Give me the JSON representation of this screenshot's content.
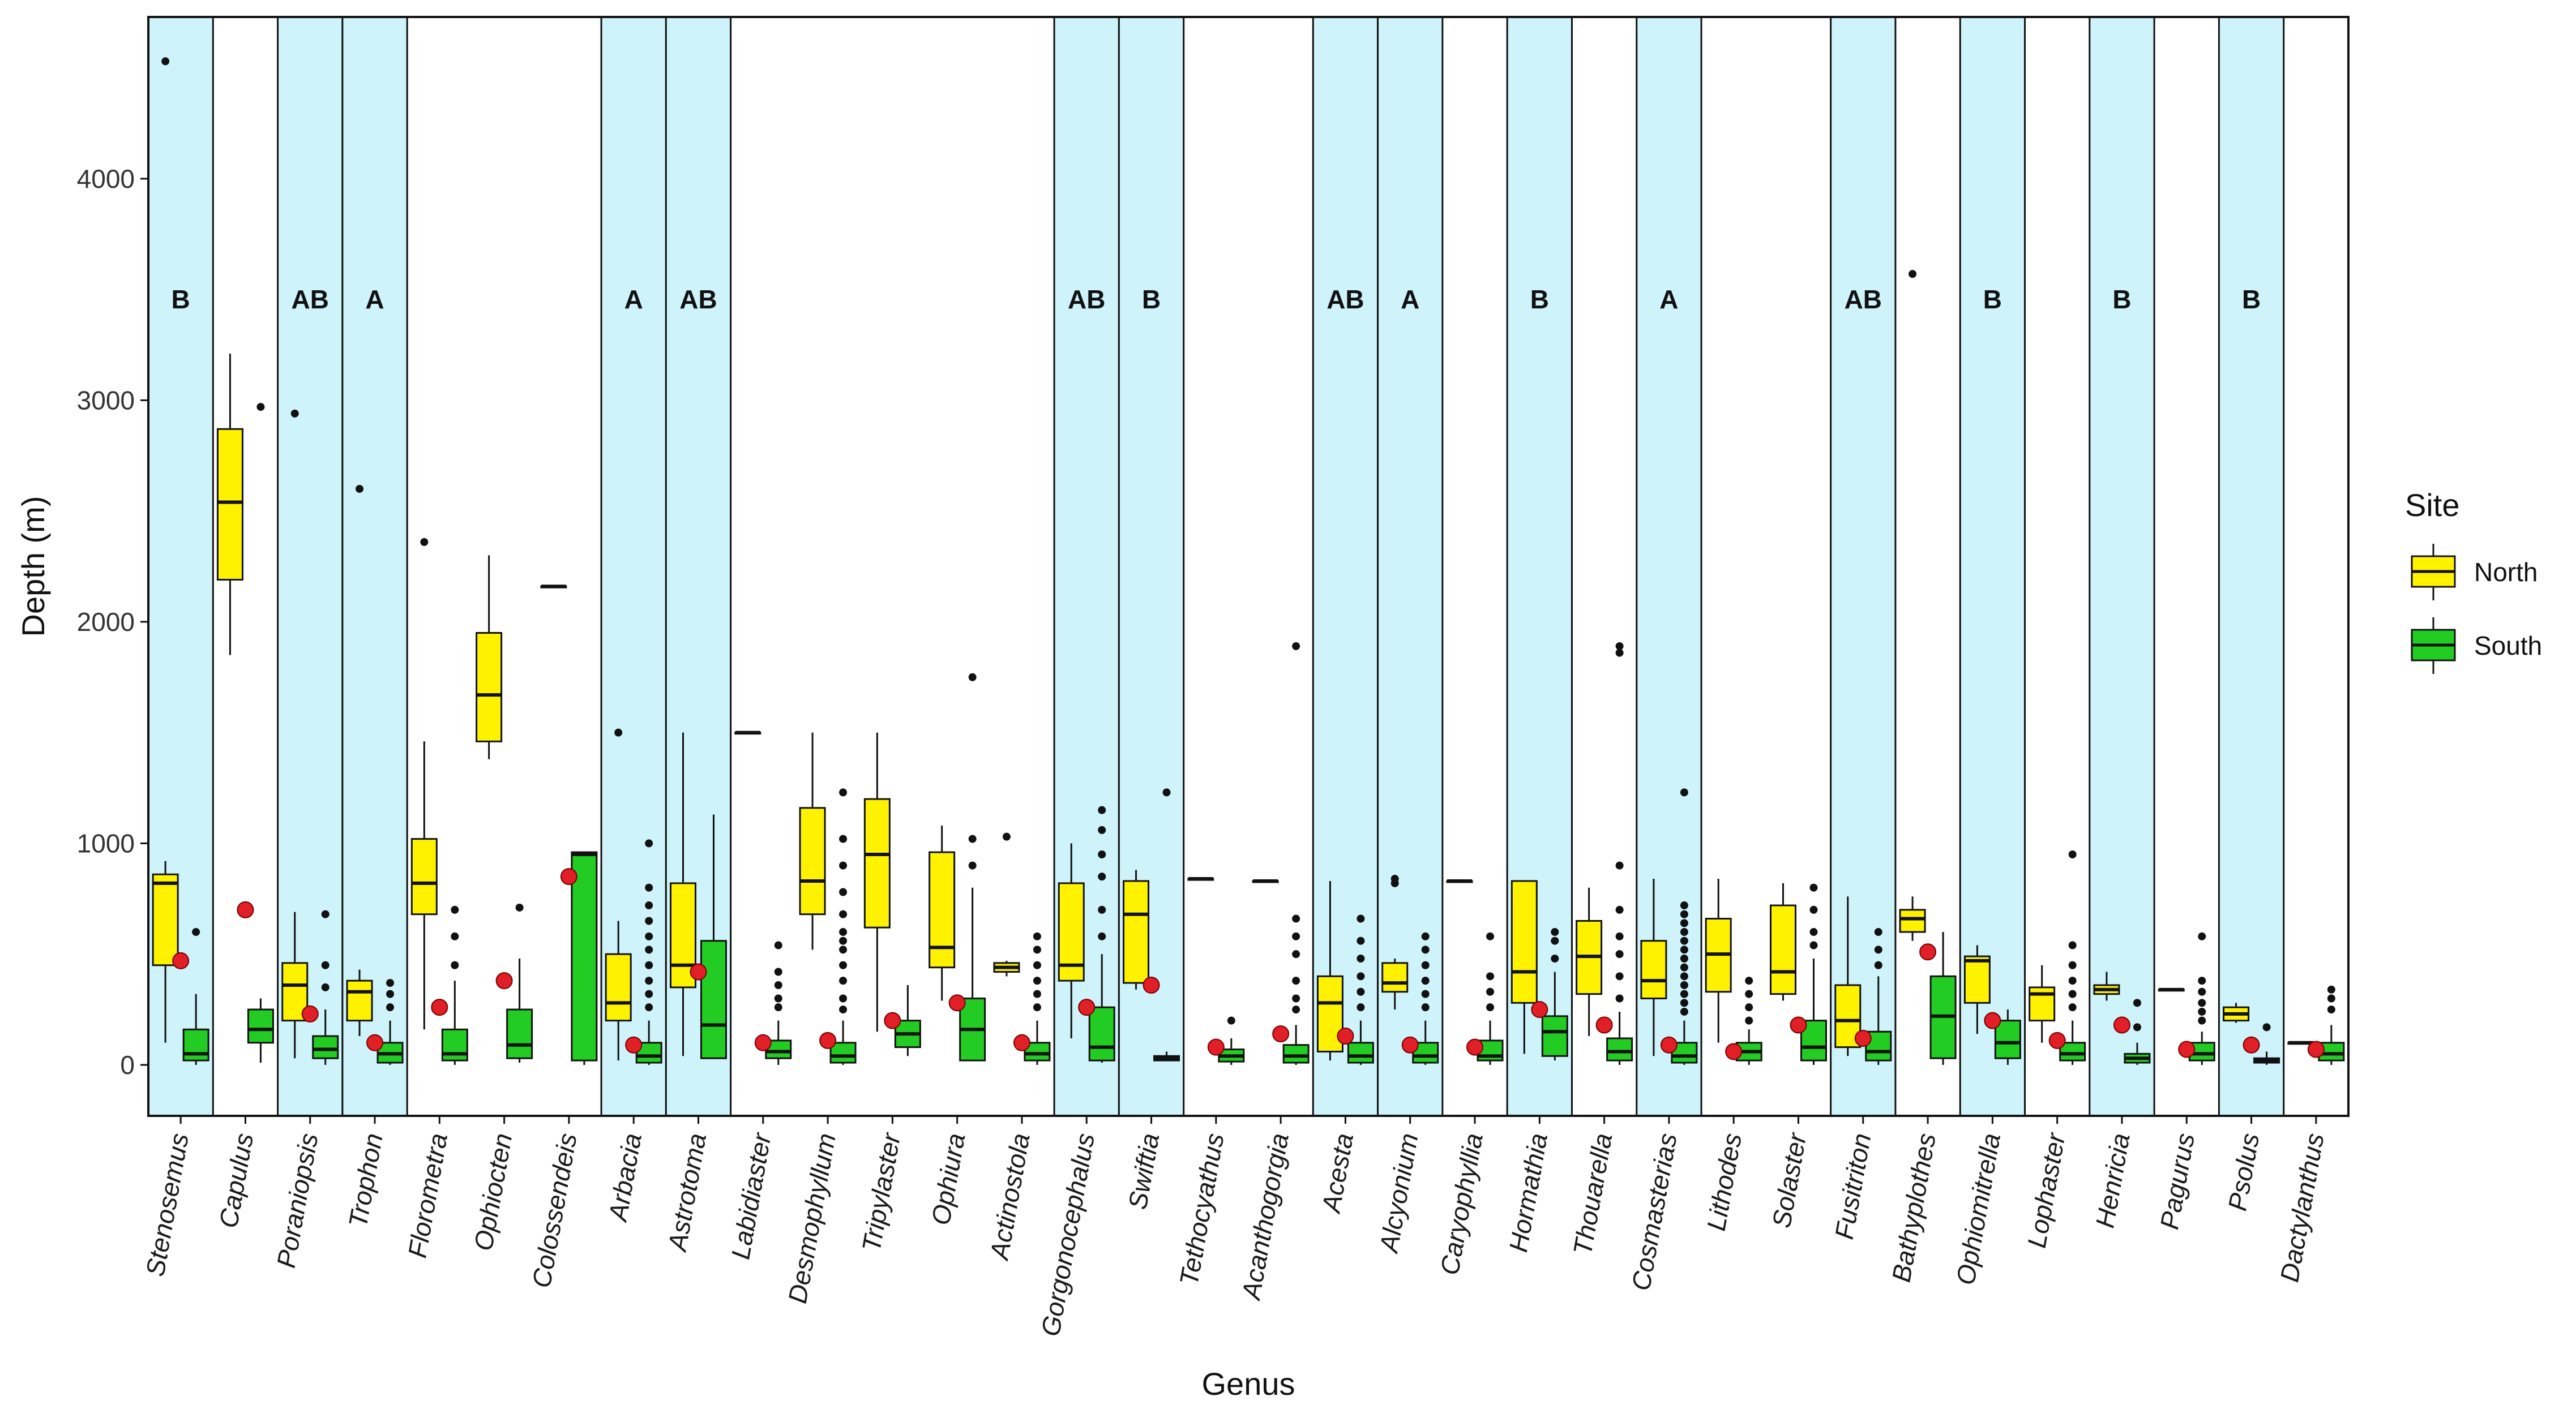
{
  "chart_data": {
    "type": "boxplot",
    "xlabel": "Genus",
    "ylabel": "Depth (m)",
    "ylim": [
      -230,
      4730
    ],
    "yticks": [
      0,
      1000,
      2000,
      3000,
      4000
    ],
    "legend": {
      "title": "Site",
      "placement": "right",
      "entries": [
        {
          "name": "North",
          "color": "#FFF200"
        },
        {
          "name": "South",
          "color": "#22CC22"
        }
      ]
    },
    "colors": {
      "highlight_band": "#CFF3FB",
      "north_fill": "#FFF200",
      "south_fill": "#22CC22",
      "mean_point": "#E01F26",
      "outline": "#111111",
      "outlier": "#111111"
    },
    "genera": [
      {
        "name": "Stenosemus",
        "highlight": true,
        "letter": "B",
        "north": {
          "whisker_low": 100,
          "q1": 450,
          "median": 820,
          "q3": 860,
          "whisker_high": 920,
          "outliers": [
            4530
          ]
        },
        "south": {
          "whisker_low": 0,
          "q1": 20,
          "median": 50,
          "q3": 160,
          "whisker_high": 320,
          "outliers": [
            600
          ]
        },
        "mean": 470
      },
      {
        "name": "Capulus",
        "highlight": false,
        "letter": "",
        "north": {
          "whisker_low": 1850,
          "q1": 2190,
          "median": 2540,
          "q3": 2870,
          "whisker_high": 3210,
          "outliers": []
        },
        "south": {
          "whisker_low": 10,
          "q1": 100,
          "median": 160,
          "q3": 250,
          "whisker_high": 300,
          "outliers": [
            2970
          ]
        },
        "mean": 700
      },
      {
        "name": "Poraniopsis",
        "highlight": true,
        "letter": "AB",
        "north": {
          "whisker_low": 30,
          "q1": 200,
          "median": 360,
          "q3": 460,
          "whisker_high": 690,
          "outliers": [
            2940
          ]
        },
        "south": {
          "whisker_low": 0,
          "q1": 30,
          "median": 70,
          "q3": 130,
          "whisker_high": 250,
          "outliers": [
            350,
            450,
            680
          ]
        },
        "mean": 230
      },
      {
        "name": "Trophon",
        "highlight": true,
        "letter": "A",
        "north": {
          "whisker_low": 130,
          "q1": 200,
          "median": 330,
          "q3": 380,
          "whisker_high": 430,
          "outliers": [
            2600
          ]
        },
        "south": {
          "whisker_low": 0,
          "q1": 10,
          "median": 50,
          "q3": 100,
          "whisker_high": 200,
          "outliers": [
            260,
            320,
            370
          ]
        },
        "mean": 100
      },
      {
        "name": "Florometra",
        "highlight": false,
        "letter": "",
        "north": {
          "whisker_low": 160,
          "q1": 680,
          "median": 820,
          "q3": 1020,
          "whisker_high": 1460,
          "outliers": [
            2360
          ]
        },
        "south": {
          "whisker_low": 0,
          "q1": 20,
          "median": 50,
          "q3": 160,
          "whisker_high": 380,
          "outliers": [
            450,
            580,
            700
          ]
        },
        "mean": 260
      },
      {
        "name": "Ophiocten",
        "highlight": false,
        "letter": "",
        "north": {
          "whisker_low": 1380,
          "q1": 1460,
          "median": 1670,
          "q3": 1950,
          "whisker_high": 2300,
          "outliers": []
        },
        "south": {
          "whisker_low": 10,
          "q1": 30,
          "median": 90,
          "q3": 250,
          "whisker_high": 480,
          "outliers": [
            710
          ]
        },
        "mean": 380
      },
      {
        "name": "Colossendeis",
        "highlight": false,
        "letter": "",
        "north": {
          "whisker_low": 2160,
          "q1": 2160,
          "median": 2160,
          "q3": 2160,
          "whisker_high": 2160,
          "outliers": []
        },
        "south": {
          "whisker_low": 0,
          "q1": 20,
          "median": 950,
          "q3": 960,
          "whisker_high": 960,
          "outliers": []
        },
        "mean": 850
      },
      {
        "name": "Arbacia",
        "highlight": true,
        "letter": "A",
        "north": {
          "whisker_low": 20,
          "q1": 200,
          "median": 280,
          "q3": 500,
          "whisker_high": 650,
          "outliers": [
            1500
          ]
        },
        "south": {
          "whisker_low": 0,
          "q1": 10,
          "median": 40,
          "q3": 100,
          "whisker_high": 200,
          "outliers": [
            260,
            320,
            380,
            450,
            520,
            580,
            650,
            720,
            800,
            1000
          ]
        },
        "mean": 90
      },
      {
        "name": "Astrotoma",
        "highlight": true,
        "letter": "AB",
        "north": {
          "whisker_low": 40,
          "q1": 350,
          "median": 450,
          "q3": 820,
          "whisker_high": 1500,
          "outliers": []
        },
        "south": {
          "whisker_low": 30,
          "q1": 30,
          "median": 180,
          "q3": 560,
          "whisker_high": 1130,
          "outliers": []
        },
        "mean": 420
      },
      {
        "name": "Labidiaster",
        "highlight": false,
        "letter": "",
        "north": {
          "whisker_low": 1500,
          "q1": 1500,
          "median": 1500,
          "q3": 1500,
          "whisker_high": 1500,
          "outliers": []
        },
        "south": {
          "whisker_low": 0,
          "q1": 30,
          "median": 60,
          "q3": 110,
          "whisker_high": 200,
          "outliers": [
            260,
            300,
            360,
            420,
            540
          ]
        },
        "mean": 100
      },
      {
        "name": "Desmophyllum",
        "highlight": false,
        "letter": "",
        "north": {
          "whisker_low": 520,
          "q1": 680,
          "median": 830,
          "q3": 1160,
          "whisker_high": 1500,
          "outliers": []
        },
        "south": {
          "whisker_low": 0,
          "q1": 10,
          "median": 40,
          "q3": 100,
          "whisker_high": 200,
          "outliers": [
            250,
            300,
            380,
            450,
            520,
            560,
            600,
            680,
            780,
            900,
            1020,
            1230
          ]
        },
        "mean": 110
      },
      {
        "name": "Tripylaster",
        "highlight": false,
        "letter": "",
        "north": {
          "whisker_low": 150,
          "q1": 620,
          "median": 950,
          "q3": 1200,
          "whisker_high": 1500,
          "outliers": []
        },
        "south": {
          "whisker_low": 40,
          "q1": 80,
          "median": 140,
          "q3": 200,
          "whisker_high": 360,
          "outliers": []
        },
        "mean": 200
      },
      {
        "name": "Ophiura",
        "highlight": false,
        "letter": "",
        "north": {
          "whisker_low": 290,
          "q1": 440,
          "median": 530,
          "q3": 960,
          "whisker_high": 1080,
          "outliers": []
        },
        "south": {
          "whisker_low": 20,
          "q1": 20,
          "median": 160,
          "q3": 300,
          "whisker_high": 800,
          "outliers": [
            900,
            1020,
            1750
          ]
        },
        "mean": 280
      },
      {
        "name": "Actinostola",
        "highlight": false,
        "letter": "",
        "north": {
          "whisker_low": 400,
          "q1": 420,
          "median": 440,
          "q3": 460,
          "whisker_high": 470,
          "outliers": [
            1030
          ]
        },
        "south": {
          "whisker_low": 0,
          "q1": 20,
          "median": 50,
          "q3": 100,
          "whisker_high": 200,
          "outliers": [
            260,
            320,
            380,
            450,
            520,
            580
          ]
        },
        "mean": 100
      },
      {
        "name": "Gorgonocephalus",
        "highlight": true,
        "letter": "AB",
        "north": {
          "whisker_low": 120,
          "q1": 380,
          "median": 450,
          "q3": 820,
          "whisker_high": 1000,
          "outliers": []
        },
        "south": {
          "whisker_low": 10,
          "q1": 20,
          "median": 80,
          "q3": 260,
          "whisker_high": 500,
          "outliers": [
            580,
            700,
            850,
            950,
            1060,
            1150
          ]
        },
        "mean": 260
      },
      {
        "name": "Swiftia",
        "highlight": true,
        "letter": "B",
        "north": {
          "whisker_low": 340,
          "q1": 370,
          "median": 680,
          "q3": 830,
          "whisker_high": 880,
          "outliers": []
        },
        "south": {
          "whisker_low": 20,
          "q1": 20,
          "median": 30,
          "q3": 40,
          "whisker_high": 60,
          "outliers": [
            1230
          ]
        },
        "mean": 360
      },
      {
        "name": "Tethocyathus",
        "highlight": false,
        "letter": "",
        "north": {
          "whisker_low": 840,
          "q1": 840,
          "median": 840,
          "q3": 840,
          "whisker_high": 840,
          "outliers": []
        },
        "south": {
          "whisker_low": 0,
          "q1": 15,
          "median": 40,
          "q3": 70,
          "whisker_high": 120,
          "outliers": [
            200
          ]
        },
        "mean": 80
      },
      {
        "name": "Acanthogorgia",
        "highlight": false,
        "letter": "",
        "north": {
          "whisker_low": 830,
          "q1": 830,
          "median": 830,
          "q3": 830,
          "whisker_high": 830,
          "outliers": []
        },
        "south": {
          "whisker_low": 0,
          "q1": 10,
          "median": 40,
          "q3": 90,
          "whisker_high": 180,
          "outliers": [
            250,
            300,
            380,
            500,
            580,
            660,
            1890
          ]
        },
        "mean": 140
      },
      {
        "name": "Acesta",
        "highlight": true,
        "letter": "AB",
        "north": {
          "whisker_low": 20,
          "q1": 60,
          "median": 280,
          "q3": 400,
          "whisker_high": 830,
          "outliers": []
        },
        "south": {
          "whisker_low": 0,
          "q1": 10,
          "median": 40,
          "q3": 100,
          "whisker_high": 200,
          "outliers": [
            260,
            330,
            400,
            480,
            560,
            660
          ]
        },
        "mean": 130
      },
      {
        "name": "Alcyonium",
        "highlight": true,
        "letter": "A",
        "north": {
          "whisker_low": 250,
          "q1": 330,
          "median": 370,
          "q3": 460,
          "whisker_high": 480,
          "outliers": [
            820,
            840
          ]
        },
        "south": {
          "whisker_low": 0,
          "q1": 10,
          "median": 40,
          "q3": 100,
          "whisker_high": 200,
          "outliers": [
            260,
            320,
            380,
            450,
            520,
            580
          ]
        },
        "mean": 90
      },
      {
        "name": "Caryophyllia",
        "highlight": false,
        "letter": "",
        "north": {
          "whisker_low": 830,
          "q1": 830,
          "median": 830,
          "q3": 830,
          "whisker_high": 830,
          "outliers": []
        },
        "south": {
          "whisker_low": 0,
          "q1": 20,
          "median": 40,
          "q3": 110,
          "whisker_high": 200,
          "outliers": [
            260,
            330,
            400,
            580
          ]
        },
        "mean": 80
      },
      {
        "name": "Hormathia",
        "highlight": true,
        "letter": "B",
        "north": {
          "whisker_low": 50,
          "q1": 280,
          "median": 420,
          "q3": 830,
          "whisker_high": 830,
          "outliers": []
        },
        "south": {
          "whisker_low": 20,
          "q1": 40,
          "median": 150,
          "q3": 220,
          "whisker_high": 420,
          "outliers": [
            480,
            560,
            600
          ]
        },
        "mean": 250
      },
      {
        "name": "Thouarella",
        "highlight": false,
        "letter": "",
        "north": {
          "whisker_low": 130,
          "q1": 320,
          "median": 490,
          "q3": 650,
          "whisker_high": 800,
          "outliers": []
        },
        "south": {
          "whisker_low": 0,
          "q1": 20,
          "median": 60,
          "q3": 120,
          "whisker_high": 240,
          "outliers": [
            300,
            400,
            500,
            580,
            700,
            900,
            1860,
            1890
          ]
        },
        "mean": 180
      },
      {
        "name": "Cosmasterias",
        "highlight": true,
        "letter": "A",
        "north": {
          "whisker_low": 40,
          "q1": 300,
          "median": 380,
          "q3": 560,
          "whisker_high": 840,
          "outliers": []
        },
        "south": {
          "whisker_low": 0,
          "q1": 10,
          "median": 40,
          "q3": 100,
          "whisker_high": 200,
          "outliers": [
            240,
            280,
            320,
            360,
            400,
            440,
            480,
            520,
            560,
            600,
            640,
            680,
            720,
            1230
          ]
        },
        "mean": 90
      },
      {
        "name": "Lithodes",
        "highlight": false,
        "letter": "",
        "north": {
          "whisker_low": 100,
          "q1": 330,
          "median": 500,
          "q3": 660,
          "whisker_high": 840,
          "outliers": []
        },
        "south": {
          "whisker_low": 0,
          "q1": 20,
          "median": 60,
          "q3": 100,
          "whisker_high": 160,
          "outliers": [
            200,
            260,
            320,
            380
          ]
        },
        "mean": 60
      },
      {
        "name": "Solaster",
        "highlight": false,
        "letter": "",
        "north": {
          "whisker_low": 290,
          "q1": 320,
          "median": 420,
          "q3": 720,
          "whisker_high": 820,
          "outliers": []
        },
        "south": {
          "whisker_low": 0,
          "q1": 20,
          "median": 80,
          "q3": 200,
          "whisker_high": 480,
          "outliers": [
            540,
            600,
            700,
            800
          ]
        },
        "mean": 180
      },
      {
        "name": "Fusitriton",
        "highlight": true,
        "letter": "AB",
        "north": {
          "whisker_low": 40,
          "q1": 80,
          "median": 200,
          "q3": 360,
          "whisker_high": 760,
          "outliers": []
        },
        "south": {
          "whisker_low": 0,
          "q1": 20,
          "median": 60,
          "q3": 150,
          "whisker_high": 400,
          "outliers": [
            450,
            520,
            600
          ]
        },
        "mean": 120
      },
      {
        "name": "Bathyplothes",
        "highlight": false,
        "letter": "",
        "north": {
          "whisker_low": 560,
          "q1": 600,
          "median": 660,
          "q3": 700,
          "whisker_high": 760,
          "outliers": [
            3570
          ]
        },
        "south": {
          "whisker_low": 0,
          "q1": 30,
          "median": 220,
          "q3": 400,
          "whisker_high": 600,
          "outliers": []
        },
        "mean": 510
      },
      {
        "name": "Ophiomitrella",
        "highlight": true,
        "letter": "B",
        "north": {
          "whisker_low": 140,
          "q1": 280,
          "median": 470,
          "q3": 490,
          "whisker_high": 540,
          "outliers": []
        },
        "south": {
          "whisker_low": 0,
          "q1": 30,
          "median": 100,
          "q3": 200,
          "whisker_high": 250,
          "outliers": []
        },
        "mean": 200
      },
      {
        "name": "Lophaster",
        "highlight": false,
        "letter": "",
        "north": {
          "whisker_low": 100,
          "q1": 200,
          "median": 320,
          "q3": 350,
          "whisker_high": 450,
          "outliers": []
        },
        "south": {
          "whisker_low": 0,
          "q1": 20,
          "median": 50,
          "q3": 100,
          "whisker_high": 200,
          "outliers": [
            260,
            320,
            380,
            450,
            540,
            950
          ]
        },
        "mean": 110
      },
      {
        "name": "Henricia",
        "highlight": true,
        "letter": "B",
        "north": {
          "whisker_low": 290,
          "q1": 320,
          "median": 340,
          "q3": 360,
          "whisker_high": 420,
          "outliers": []
        },
        "south": {
          "whisker_low": 0,
          "q1": 10,
          "median": 30,
          "q3": 50,
          "whisker_high": 100,
          "outliers": [
            170,
            280
          ]
        },
        "mean": 180
      },
      {
        "name": "Pagurus",
        "highlight": false,
        "letter": "",
        "north": {
          "whisker_low": 340,
          "q1": 340,
          "median": 340,
          "q3": 340,
          "whisker_high": 340,
          "outliers": []
        },
        "south": {
          "whisker_low": 0,
          "q1": 20,
          "median": 50,
          "q3": 100,
          "whisker_high": 150,
          "outliers": [
            200,
            240,
            280,
            330,
            380,
            580
          ]
        },
        "mean": 70
      },
      {
        "name": "Psolus",
        "highlight": true,
        "letter": "B",
        "north": {
          "whisker_low": 190,
          "q1": 200,
          "median": 230,
          "q3": 260,
          "whisker_high": 280,
          "outliers": []
        },
        "south": {
          "whisker_low": 0,
          "q1": 10,
          "median": 20,
          "q3": 30,
          "whisker_high": 60,
          "outliers": [
            170
          ]
        },
        "mean": 90
      },
      {
        "name": "Dactylanthus",
        "highlight": false,
        "letter": "",
        "north": {
          "whisker_low": 100,
          "q1": 100,
          "median": 100,
          "q3": 100,
          "whisker_high": 100,
          "outliers": []
        },
        "south": {
          "whisker_low": 0,
          "q1": 20,
          "median": 50,
          "q3": 100,
          "whisker_high": 180,
          "outliers": [
            250,
            300,
            340
          ]
        },
        "mean": 70
      }
    ]
  }
}
